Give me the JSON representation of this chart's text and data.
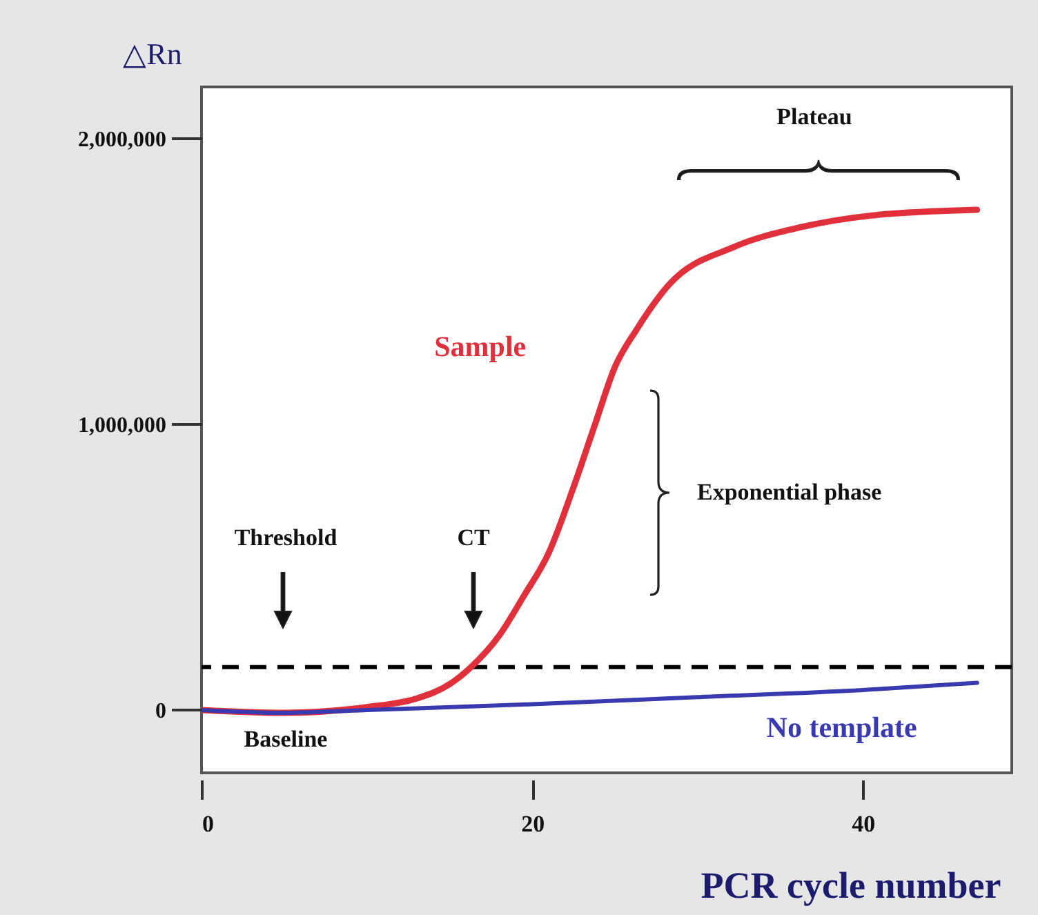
{
  "chart_data": {
    "type": "line",
    "xlabel": "PCR cycle number",
    "ylabel": "△Rn",
    "xlim": [
      0,
      49
    ],
    "ylim": [
      -220000,
      2180000
    ],
    "xticks": [
      0,
      20,
      40
    ],
    "yticks": [
      0,
      {
        "value": 1000000,
        "label": "1,000,000"
      },
      {
        "value": 2000000,
        "label": "2,000,000"
      }
    ],
    "series": [
      {
        "name": "Sample",
        "color": "#e0303c",
        "x": [
          0,
          5,
          10,
          13,
          15,
          16.3,
          18,
          19.5,
          21,
          22.5,
          23.8,
          25,
          26.3,
          28.3,
          32.2,
          36.3,
          40.5,
          46.9
        ],
        "values": [
          0,
          -10000,
          10000,
          40000,
          90000,
          150000,
          260000,
          400000,
          550000,
          780000,
          1000000,
          1200000,
          1330000,
          1490000,
          1620000,
          1690000,
          1730000,
          1750000
        ]
      },
      {
        "name": "No template",
        "color": "#3a3ab0",
        "x": [
          0,
          5,
          10,
          20,
          30,
          40,
          46.9
        ],
        "values": [
          0,
          -10000,
          0,
          20000,
          45000,
          70000,
          95000
        ]
      }
    ],
    "ref_lines": [
      {
        "axis": "y",
        "value": 150000,
        "color": "#000000",
        "line_style": "dashed"
      }
    ],
    "annotations": [
      "Threshold",
      "CT",
      "Baseline",
      "Plateau",
      "Exponential phase"
    ]
  }
}
